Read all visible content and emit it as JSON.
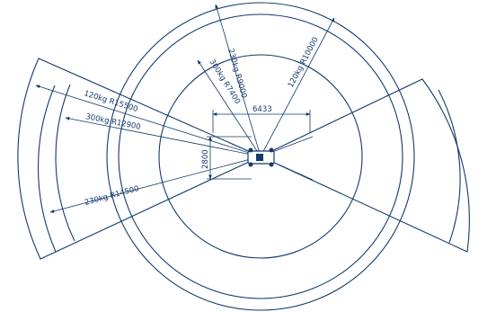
{
  "diagram": {
    "line_color": "#143a6b",
    "background": "#ffffff",
    "dimensions": {
      "width": "6433",
      "height": "2800"
    },
    "ray_labels": [
      {
        "id": "ray-120kg-r15500",
        "text": "120kg  R15500"
      },
      {
        "id": "ray-300kg-r12900",
        "text": "300kg  R12900"
      },
      {
        "id": "ray-230kg-r14500",
        "text": "230kg  R14500"
      },
      {
        "id": "ray-300kg-r7400",
        "text": "300kg  R7400"
      },
      {
        "id": "ray-230kg-r9000",
        "text": "230kg  R9000"
      },
      {
        "id": "ray-120kg-r10000",
        "text": "120kg  R10000"
      }
    ]
  }
}
